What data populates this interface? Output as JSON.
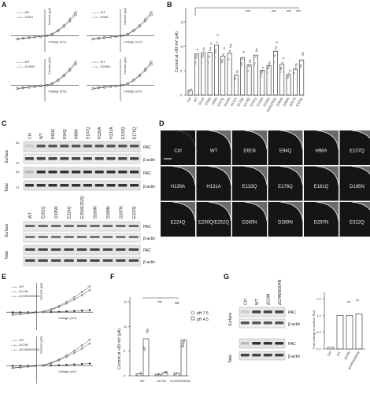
{
  "panels": {
    "A": {
      "label": "A",
      "plots": [
        {
          "legend": [
            "WT",
            "D91N"
          ],
          "xlabel": "Voltage (mV)",
          "ylabel": "Current (µA)"
        },
        {
          "legend": [
            "WT",
            "H98A"
          ],
          "xlabel": "Voltage (mV)",
          "ylabel": "Current (µA)"
        },
        {
          "legend": [
            "WT",
            "D195N"
          ],
          "xlabel": "Voltage (mV)",
          "ylabel": "Current (µA)"
        },
        {
          "legend": [
            "WT",
            "D289N"
          ],
          "xlabel": "Voltage (mV)",
          "ylabel": "Current (µA)"
        }
      ]
    },
    "B": {
      "label": "B",
      "ylabel": "Current at +80 mV (µA)",
      "sig": [
        "***",
        "***",
        "***",
        "***"
      ],
      "yticks": [
        "0",
        "5",
        "10",
        "15"
      ]
    },
    "C": {
      "label": "C",
      "top_lanes": [
        "Ctrl",
        "WT",
        "D91N",
        "E94Q",
        "H98A",
        "E107Q",
        "H130A",
        "H131A",
        "E133Q",
        "E176Q"
      ],
      "bottom_lanes": [
        "WT",
        "E181Q",
        "D195N",
        "E224Q",
        "E250/E252Q",
        "D260N",
        "D289N",
        "D297N",
        "E322Q"
      ],
      "surface": "Surface",
      "total": "Total",
      "pac": "PAC",
      "actin": "β-actin",
      "mw": [
        "55",
        "37",
        "55",
        "37"
      ]
    },
    "D": {
      "label": "D",
      "tiles": [
        "Ctrl",
        "WT",
        "D91N",
        "E94Q",
        "H98A",
        "E107Q",
        "H130A",
        "H131A",
        "E133Q",
        "E176Q",
        "E181Q",
        "D195N",
        "E224Q",
        "E250Q/E252Q",
        "D260N",
        "D289N",
        "D297N",
        "E322Q"
      ]
    },
    "E": {
      "label": "E",
      "legend1": [
        "WT",
        "ΔCHN",
        "ΔCHN/W304N"
      ],
      "legend2": [
        "WT",
        "ΔCHN",
        "ΔCHN/W304N"
      ],
      "xlabel": "Voltage (mV)",
      "ylabel": "Current (µA)"
    },
    "F": {
      "label": "F",
      "ylabel": "Current at +80 mV (µA)",
      "legend": [
        "pH 7.5",
        "pH 4.5"
      ],
      "groups": [
        "WT",
        "ΔCHN",
        "ΔCHN/W304N"
      ],
      "sig": [
        "***",
        "ns"
      ]
    },
    "G": {
      "label": "G",
      "lanes": [
        "Ctrl",
        "WT",
        "ΔCHN",
        "ΔCHN/W304N"
      ],
      "pac": "PAC",
      "actin": "β-actin",
      "surface": "Surface",
      "total": "Total",
      "ylabel": "Fold change in surface PAC",
      "sig": [
        "ns",
        "ns"
      ]
    }
  },
  "chart_data": [
    {
      "panel": "B",
      "type": "bar",
      "categories": [
        "Ctrl",
        "WT",
        "D91N",
        "E94Q",
        "H98A",
        "E107Q",
        "H130A",
        "H131A",
        "E133Q",
        "E176Q",
        "E181Q",
        "D195N",
        "E224Q",
        "E250/252Q",
        "D260N",
        "D289N",
        "D297N",
        "E322Q"
      ],
      "values": [
        1.0,
        8.5,
        8.7,
        8.8,
        10.3,
        8.0,
        8.6,
        4.1,
        7.7,
        6.2,
        8.2,
        5.1,
        6.1,
        9.0,
        6.3,
        4.2,
        5.3,
        7.2
      ],
      "ylim": [
        0,
        15
      ],
      "ylabel": "Current at +80 mV (µA)"
    },
    {
      "panel": "F",
      "type": "bar",
      "categories": [
        "WT",
        "ΔCHN",
        "ΔCHN/W304N"
      ],
      "series": [
        {
          "name": "pH 7.5",
          "values": [
            0.4,
            0.3,
            0.5
          ]
        },
        {
          "name": "pH 4.5",
          "values": [
            7.5,
            0.6,
            7.2
          ]
        }
      ],
      "ylim": [
        0,
        15
      ],
      "ylabel": "Current at +80 mV (µA)"
    },
    {
      "panel": "G",
      "type": "bar",
      "categories": [
        "Ctrl",
        "WT",
        "ΔCHN",
        "ΔCHN/W304N"
      ],
      "values": [
        0.05,
        1.0,
        1.0,
        1.05
      ],
      "ylim": [
        0,
        1.5
      ],
      "ylabel": "Fold change in surface PAC"
    }
  ]
}
